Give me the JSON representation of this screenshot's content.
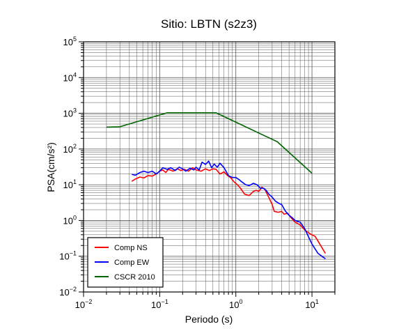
{
  "chart_data": {
    "type": "line",
    "title": "Sitio: LBTN (s2z3)",
    "xlabel": "Periodo (s)",
    "ylabel": "PSA(cm/s²)",
    "xscale": "log",
    "yscale": "log",
    "xlim": [
      0.01,
      20
    ],
    "ylim": [
      0.01,
      100000
    ],
    "grid": true,
    "legend_position": "bottom-left",
    "x_ticks": [
      {
        "value": 0.01,
        "base": "10",
        "exp": "−2"
      },
      {
        "value": 0.1,
        "base": "10",
        "exp": "−1"
      },
      {
        "value": 1,
        "base": "10",
        "exp": "0"
      },
      {
        "value": 10,
        "base": "10",
        "exp": "1"
      }
    ],
    "y_ticks": [
      {
        "value": 0.01,
        "base": "10",
        "exp": "−2"
      },
      {
        "value": 0.1,
        "base": "10",
        "exp": "−1"
      },
      {
        "value": 1,
        "base": "10",
        "exp": "0"
      },
      {
        "value": 10,
        "base": "10",
        "exp": "1"
      },
      {
        "value": 100,
        "base": "10",
        "exp": "2"
      },
      {
        "value": 1000,
        "base": "10",
        "exp": "3"
      },
      {
        "value": 10000,
        "base": "10",
        "exp": "4"
      },
      {
        "value": 100000,
        "base": "10",
        "exp": "5"
      }
    ],
    "series": [
      {
        "name": "Comp NS",
        "color": "#ff0000",
        "points": [
          [
            0.043,
            12.5
          ],
          [
            0.048,
            14.5
          ],
          [
            0.055,
            16.5
          ],
          [
            0.062,
            15.5
          ],
          [
            0.07,
            18
          ],
          [
            0.08,
            17.5
          ],
          [
            0.09,
            20
          ],
          [
            0.1,
            24
          ],
          [
            0.11,
            26
          ],
          [
            0.12,
            22
          ],
          [
            0.13,
            27
          ],
          [
            0.15,
            24
          ],
          [
            0.17,
            28
          ],
          [
            0.19,
            25
          ],
          [
            0.21,
            27
          ],
          [
            0.24,
            24
          ],
          [
            0.27,
            30
          ],
          [
            0.3,
            26
          ],
          [
            0.35,
            24
          ],
          [
            0.4,
            28
          ],
          [
            0.45,
            25
          ],
          [
            0.5,
            28
          ],
          [
            0.55,
            27
          ],
          [
            0.62,
            20
          ],
          [
            0.7,
            23
          ],
          [
            0.78,
            18
          ],
          [
            0.85,
            16
          ],
          [
            0.95,
            12
          ],
          [
            1.05,
            10
          ],
          [
            1.15,
            8
          ],
          [
            1.3,
            5.5
          ],
          [
            1.5,
            5
          ],
          [
            1.7,
            6.5
          ],
          [
            1.85,
            7
          ],
          [
            2.0,
            6.5
          ],
          [
            2.2,
            8.5
          ],
          [
            2.4,
            7.5
          ],
          [
            2.7,
            4.5
          ],
          [
            3.0,
            2.8
          ],
          [
            3.2,
            1.8
          ],
          [
            3.6,
            1.7
          ],
          [
            4.0,
            1.8
          ],
          [
            4.3,
            1.5
          ],
          [
            4.8,
            1.6
          ],
          [
            5.3,
            1.2
          ],
          [
            6.0,
            0.9
          ],
          [
            7.0,
            0.75
          ],
          [
            8.0,
            0.55
          ],
          [
            9.5,
            0.42
          ],
          [
            11.0,
            0.36
          ],
          [
            13.0,
            0.2
          ],
          [
            15.0,
            0.12
          ]
        ]
      },
      {
        "name": "Comp EW",
        "color": "#0000ff",
        "points": [
          [
            0.043,
            19.5
          ],
          [
            0.048,
            18.5
          ],
          [
            0.055,
            22
          ],
          [
            0.062,
            24
          ],
          [
            0.07,
            22
          ],
          [
            0.08,
            24
          ],
          [
            0.09,
            20
          ],
          [
            0.1,
            24
          ],
          [
            0.11,
            30
          ],
          [
            0.125,
            27
          ],
          [
            0.14,
            30
          ],
          [
            0.16,
            25
          ],
          [
            0.18,
            31
          ],
          [
            0.2,
            28
          ],
          [
            0.22,
            24
          ],
          [
            0.25,
            29
          ],
          [
            0.28,
            26
          ],
          [
            0.3,
            31
          ],
          [
            0.33,
            26
          ],
          [
            0.36,
            43
          ],
          [
            0.4,
            37
          ],
          [
            0.44,
            46
          ],
          [
            0.48,
            30
          ],
          [
            0.52,
            38
          ],
          [
            0.57,
            31
          ],
          [
            0.62,
            40
          ],
          [
            0.7,
            30
          ],
          [
            0.8,
            18
          ],
          [
            0.9,
            16
          ],
          [
            1.0,
            16
          ],
          [
            1.1,
            14
          ],
          [
            1.2,
            12
          ],
          [
            1.35,
            10
          ],
          [
            1.5,
            9.5
          ],
          [
            1.7,
            11
          ],
          [
            1.9,
            10
          ],
          [
            2.1,
            8
          ],
          [
            2.3,
            8
          ],
          [
            2.5,
            7
          ],
          [
            2.7,
            5.5
          ],
          [
            3.0,
            4.5
          ],
          [
            3.3,
            3.5
          ],
          [
            3.7,
            3.0
          ],
          [
            4.0,
            2.8
          ],
          [
            4.5,
            1.8
          ],
          [
            5.0,
            1.4
          ],
          [
            5.5,
            1.2
          ],
          [
            6.0,
            1.0
          ],
          [
            7.0,
            0.9
          ],
          [
            8.0,
            0.6
          ],
          [
            9.0,
            0.35
          ],
          [
            10.0,
            0.22
          ],
          [
            12.0,
            0.12
          ],
          [
            15.0,
            0.085
          ]
        ]
      },
      {
        "name": "CSCR 2010",
        "color": "#006400",
        "points": [
          [
            0.02,
            410
          ],
          [
            0.03,
            420
          ],
          [
            0.125,
            1030
          ],
          [
            0.55,
            1030
          ],
          [
            3.5,
            160
          ],
          [
            10.0,
            21
          ]
        ]
      }
    ]
  }
}
